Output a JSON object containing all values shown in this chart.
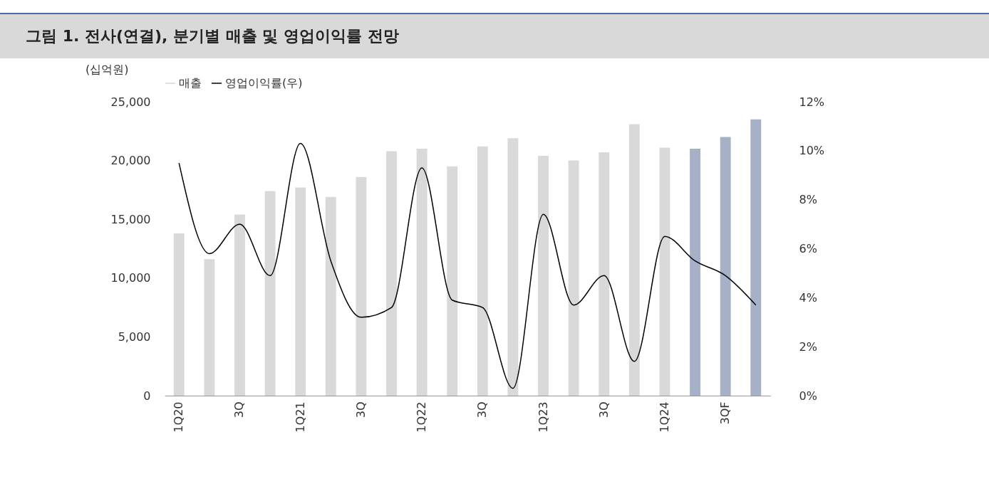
{
  "chart_data": {
    "type": "bar",
    "title": "그림 1. 전사(연결), 분기별 매출 및 영업이익률 전망",
    "ylabel": "(십억원)",
    "categories": [
      "1Q20",
      null,
      "3Q",
      null,
      "1Q21",
      null,
      "3Q",
      null,
      "1Q22",
      null,
      "3Q",
      null,
      "1Q23",
      null,
      "3Q",
      null,
      "1Q24",
      null,
      "3QF",
      null
    ],
    "series": [
      {
        "name": "매출",
        "color": "#d9d9d9",
        "colors": [
          "#d9d9d9",
          "#d9d9d9",
          "#d9d9d9",
          "#d9d9d9",
          "#d9d9d9",
          "#d9d9d9",
          "#d9d9d9",
          "#d9d9d9",
          "#d9d9d9",
          "#d9d9d9",
          "#d9d9d9",
          "#d9d9d9",
          "#d9d9d9",
          "#d9d9d9",
          "#d9d9d9",
          "#d9d9d9",
          "#d9d9d9",
          "#a6b0c6",
          "#a6b0c6",
          "#a6b0c6"
        ],
        "values": [
          13800,
          11600,
          15400,
          17400,
          17700,
          16900,
          18600,
          20800,
          21000,
          19500,
          21200,
          21900,
          20400,
          20000,
          20700,
          23100,
          21100,
          21000,
          22000,
          23500
        ]
      },
      {
        "name": "영업이익률(우)",
        "type": "line",
        "axis": "y2",
        "color": "#000000",
        "values": [
          9.5,
          5.8,
          7.0,
          4.9,
          10.3,
          5.5,
          3.2,
          3.6,
          9.3,
          3.9,
          3.6,
          0.3,
          7.4,
          3.7,
          4.9,
          1.4,
          6.5,
          5.5,
          4.9,
          3.7
        ]
      }
    ],
    "ylim": [
      0,
      25000
    ],
    "yticks": [
      {
        "value": 0,
        "label": "0"
      },
      {
        "value": 5000,
        "label": "5,000"
      },
      {
        "value": 10000,
        "label": "10,000"
      },
      {
        "value": 15000,
        "label": "15,000"
      },
      {
        "value": 20000,
        "label": "20,000"
      },
      {
        "value": 25000,
        "label": "25,000"
      }
    ],
    "y2lim": [
      0,
      12
    ],
    "y2ticks": [
      {
        "value": 0,
        "label": "0%"
      },
      {
        "value": 2,
        "label": "2%"
      },
      {
        "value": 4,
        "label": "4%"
      },
      {
        "value": 6,
        "label": "6%"
      },
      {
        "value": 8,
        "label": "8%"
      },
      {
        "value": 10,
        "label": "10%"
      },
      {
        "value": 12,
        "label": "12%"
      }
    ],
    "legend": "top",
    "grid": false
  }
}
